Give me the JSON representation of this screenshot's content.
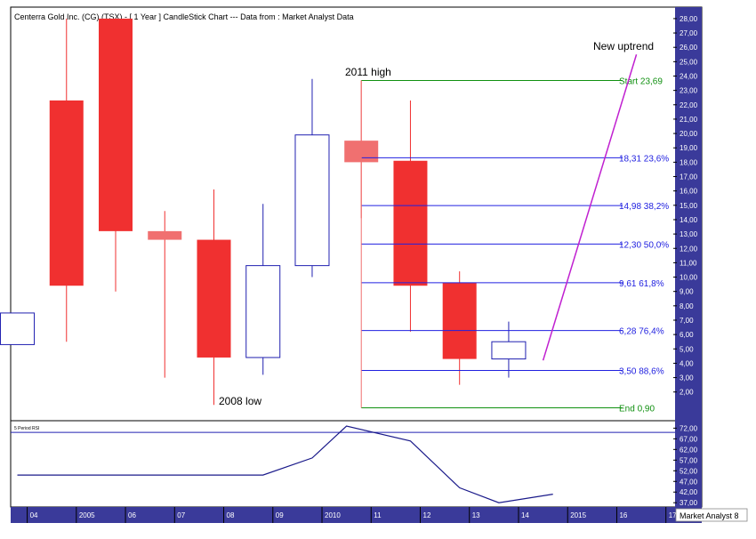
{
  "title": "Centerra Gold Inc. (CG) (TSX) -  [ 1 Year ] CandleStick Chart --- Data from : Market Analyst Data",
  "branding": "Market Analyst 8",
  "colors": {
    "bear": "#f03030",
    "bull_border": "#2020b0",
    "fib": "#2020e0",
    "endpoints": "#109010",
    "trend": "#c020d0",
    "axis_bg": "#3a3a9a",
    "axis_text": "#ffffff",
    "rsi_line": "#1a1a8a"
  },
  "annotations": {
    "high_label": "2011 high",
    "low_label": "2008 low",
    "trend_label": "New uptrend"
  },
  "chart_data": [
    {
      "type": "candlestick",
      "title": "Centerra Gold Inc. (CG) (TSX) -  [ 1 Year ] CandleStick Chart --- Data from : Market Analyst Data",
      "ylim": [
        0.0,
        28.8
      ],
      "y_ticks": [
        "2,00",
        "3,00",
        "4,00",
        "5,00",
        "6,00",
        "7,00",
        "8,00",
        "9,00",
        "10,00",
        "11,00",
        "12,00",
        "13,00",
        "14,00",
        "15,00",
        "16,00",
        "17,00",
        "18,00",
        "19,00",
        "20,00",
        "21,00",
        "22,00",
        "23,00",
        "24,00",
        "25,00",
        "26,00",
        "27,00",
        "28,00"
      ],
      "x_ticks": [
        {
          "label": "04",
          "x": 2004
        },
        {
          "label": "2005",
          "x": 2005
        },
        {
          "label": "06",
          "x": 2006
        },
        {
          "label": "07",
          "x": 2007
        },
        {
          "label": "08",
          "x": 2008
        },
        {
          "label": "09",
          "x": 2009
        },
        {
          "label": "2010",
          "x": 2010
        },
        {
          "label": "11",
          "x": 2011
        },
        {
          "label": "12",
          "x": 2012
        },
        {
          "label": "13",
          "x": 2013
        },
        {
          "label": "14",
          "x": 2014
        },
        {
          "label": "2015",
          "x": 2015
        },
        {
          "label": "16",
          "x": 2016
        },
        {
          "label": "17",
          "x": 2017
        }
      ],
      "candles": [
        {
          "year": 2003.8,
          "open": 5.3,
          "close": 7.5,
          "high": 7.5,
          "low": 5.3
        },
        {
          "year": 2004.8,
          "open": 22.3,
          "close": 9.4,
          "high": 28.0,
          "low": 5.5
        },
        {
          "year": 2005.8,
          "open": 28.0,
          "close": 13.2,
          "high": 28.0,
          "low": 9.0
        },
        {
          "year": 2006.8,
          "open": 13.2,
          "close": 12.6,
          "high": 14.6,
          "low": 3.0
        },
        {
          "year": 2007.8,
          "open": 12.6,
          "close": 4.4,
          "high": 16.1,
          "low": 1.1
        },
        {
          "year": 2008.8,
          "open": 4.4,
          "close": 10.8,
          "high": 15.1,
          "low": 3.2
        },
        {
          "year": 2009.8,
          "open": 10.8,
          "close": 19.9,
          "high": 23.8,
          "low": 10.0
        },
        {
          "year": 2010.8,
          "open": 19.5,
          "close": 18.0,
          "high": 23.7,
          "low": 14.1
        },
        {
          "year": 2011.8,
          "open": 18.1,
          "close": 9.4,
          "high": 22.3,
          "low": 6.2
        },
        {
          "year": 2012.8,
          "open": 9.6,
          "close": 4.3,
          "high": 10.4,
          "low": 2.5
        },
        {
          "year": 2013.8,
          "open": 4.3,
          "close": 5.5,
          "high": 6.9,
          "low": 3.0
        }
      ],
      "fib_levels": [
        {
          "label": "Start 23,69",
          "value": 23.69,
          "kind": "endpoint"
        },
        {
          "label": "18,31 23,6%",
          "value": 18.31,
          "kind": "fib"
        },
        {
          "label": "14,98 38,2%",
          "value": 14.98,
          "kind": "fib"
        },
        {
          "label": "12,30 50,0%",
          "value": 12.3,
          "kind": "fib"
        },
        {
          "label": "9,61 61,8%",
          "value": 9.61,
          "kind": "fib"
        },
        {
          "label": "6,28 76,4%",
          "value": 6.28,
          "kind": "fib"
        },
        {
          "label": "3,50 88,6%",
          "value": 3.5,
          "kind": "fib"
        },
        {
          "label": "End 0,90",
          "value": 0.9,
          "kind": "endpoint"
        }
      ],
      "fib_start_year": 2010.8,
      "trend_line": {
        "from": [
          2014.5,
          4.2
        ],
        "to": [
          2016.4,
          25.5
        ]
      }
    },
    {
      "type": "line",
      "title": "5 Period RSI",
      "ylim": [
        35.0,
        75.5
      ],
      "y_ticks": [
        "37,00",
        "42,00",
        "47,00",
        "52,00",
        "57,00",
        "62,00",
        "67,00",
        "72,00"
      ],
      "reference_line": 70.0,
      "x": [
        2003.8,
        2008.8,
        2009.8,
        2010.5,
        2011.8,
        2012.8,
        2013.6,
        2014.7
      ],
      "values": [
        50.0,
        50.0,
        58.0,
        73.0,
        66.0,
        44.0,
        37.0,
        41.0
      ]
    }
  ]
}
